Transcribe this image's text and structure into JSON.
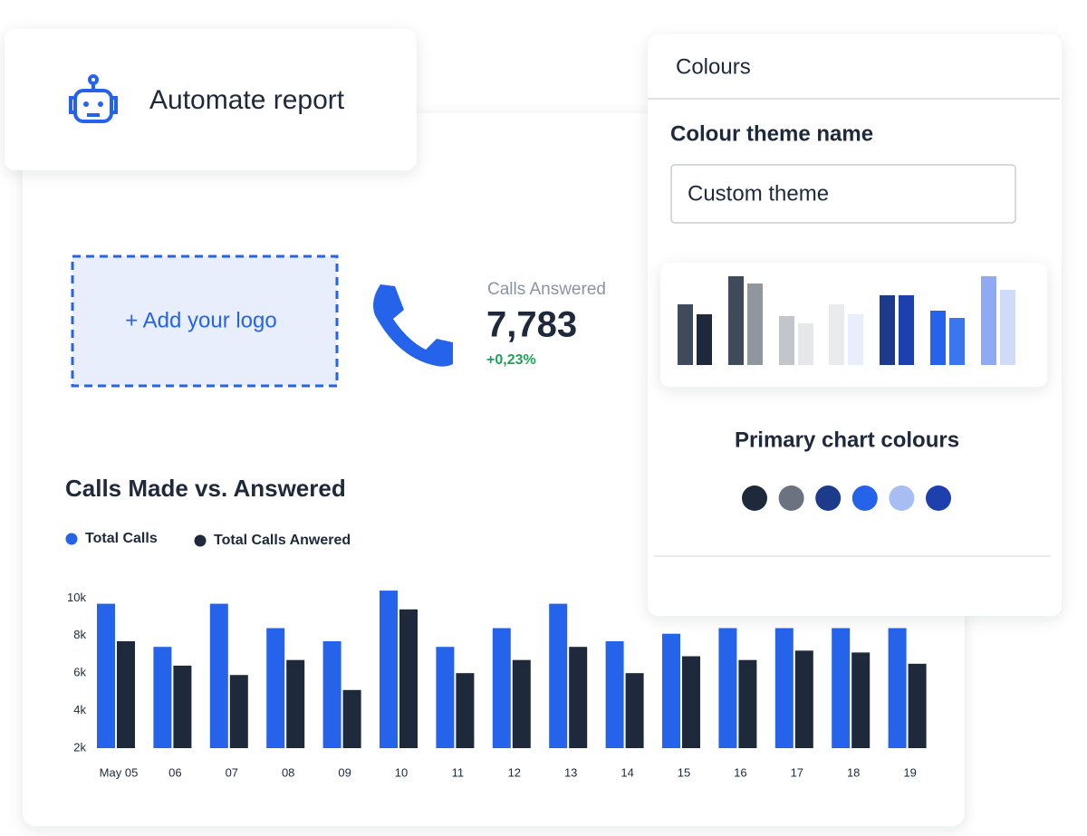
{
  "automate_card": {
    "title": "Automate report"
  },
  "logo_placeholder": {
    "label": "+ Add your logo"
  },
  "kpi": {
    "label": "Calls Answered",
    "value": "7,783",
    "change": "+0,23%"
  },
  "chart": {
    "type": "bar",
    "title": "Calls Made vs. Answered",
    "categories": [
      "May 05",
      "06",
      "07",
      "08",
      "09",
      "10",
      "11",
      "12",
      "13",
      "14",
      "15",
      "16",
      "17",
      "18",
      "19"
    ],
    "series": [
      {
        "name": "Total Calls",
        "color": "#2563eb",
        "values": [
          9700,
          7400,
          9700,
          8400,
          7700,
          10400,
          7400,
          8400,
          9700,
          7700,
          8100,
          8400,
          8400,
          8400,
          8400
        ]
      },
      {
        "name": "Total Calls Anwered",
        "color": "#1e293b",
        "values": [
          7700,
          6400,
          5900,
          6700,
          5100,
          9400,
          6000,
          6700,
          7400,
          6000,
          6900,
          6700,
          7200,
          7100,
          6500
        ]
      }
    ],
    "ylim": [
      2000,
      10500
    ],
    "yticks": [
      {
        "value": 2000,
        "label": "2k"
      },
      {
        "value": 4000,
        "label": "4k"
      },
      {
        "value": 6000,
        "label": "6k"
      },
      {
        "value": 8000,
        "label": "8k"
      },
      {
        "value": 10000,
        "label": "10k"
      }
    ]
  },
  "colours_panel": {
    "title": "Colours",
    "theme_label": "Colour theme name",
    "theme_input": "Custom theme",
    "primary_label": "Primary chart colours",
    "swatches": [
      "#1e293b",
      "#6b7280",
      "#1e3a8a",
      "#2563eb",
      "#a9bdf5",
      "#1e40af"
    ]
  }
}
